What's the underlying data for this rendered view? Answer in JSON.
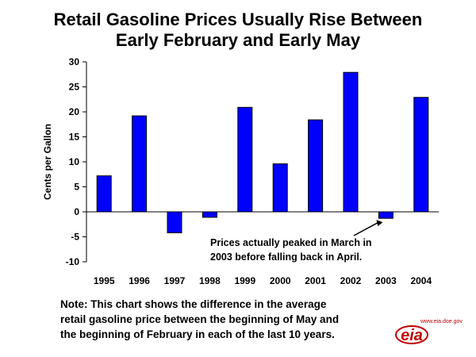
{
  "title_line1": "Retail Gasoline Prices Usually Rise Between",
  "title_line2": "Early February and Early May",
  "chart_data": {
    "type": "bar",
    "ylabel": "Cents per Gallon",
    "xlabel": "",
    "ylim": [
      -10,
      30
    ],
    "yticks": [
      30,
      25,
      20,
      15,
      10,
      5,
      0,
      -5,
      -10
    ],
    "categories": [
      "1995",
      "1996",
      "1997",
      "1998",
      "1999",
      "2000",
      "2001",
      "2002",
      "2003",
      "2004"
    ],
    "values": [
      7.2,
      19.2,
      -4.2,
      -1.1,
      20.9,
      9.6,
      18.4,
      27.9,
      -1.3,
      22.9
    ],
    "bar_color": "#0000ff",
    "annotation_line1": "Prices actually peaked in March in",
    "annotation_line2": "2003 before falling back in April.",
    "annotation_target": "2003",
    "grid": false
  },
  "note": {
    "line1": "Note:  This chart shows the difference in the average",
    "line2": "retail gasoline price between the beginning of May and",
    "line3": "the beginning of February in each of the last 10 years."
  },
  "logo": {
    "text": "eia",
    "url": "www.eia.doe.gov",
    "color": "#c00000"
  }
}
